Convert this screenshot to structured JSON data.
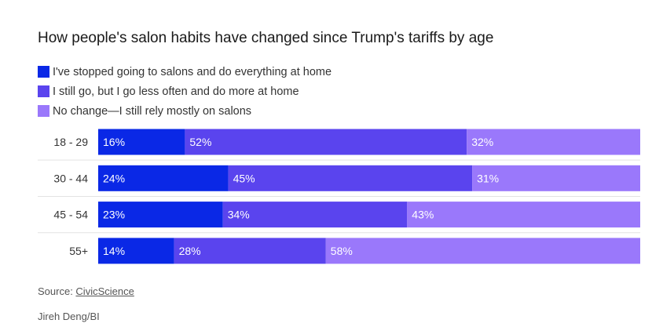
{
  "chart_data": {
    "type": "bar",
    "orientation": "horizontal",
    "stacked": true,
    "title": "How people's salon habits have changed since Trump's tariffs by age",
    "categories": [
      "18 - 29",
      "30 - 44",
      "45 - 54",
      "55+"
    ],
    "series": [
      {
        "name": "I've stopped going to salons and do everything at home",
        "values": [
          16,
          24,
          23,
          14
        ],
        "labels": [
          "16%",
          "24%",
          "23%",
          "14%"
        ],
        "color": "#0a28e6"
      },
      {
        "name": "I still go, but I go less often and do more at home",
        "values": [
          52,
          45,
          34,
          28
        ],
        "labels": [
          "52%",
          "45%",
          "34%",
          "28%"
        ],
        "color": "#5a44ee"
      },
      {
        "name": "No change—I still rely mostly on salons",
        "values": [
          32,
          31,
          43,
          58
        ],
        "labels": [
          "32%",
          "31%",
          "43%",
          "58%"
        ],
        "color": "#9a78fb"
      }
    ],
    "xlim": [
      0,
      100
    ],
    "legend_position": "top-left",
    "grid": false
  },
  "footer": {
    "source_prefix": "Source: ",
    "source_name": "CivicScience",
    "credit": "Jireh Deng/BI"
  }
}
